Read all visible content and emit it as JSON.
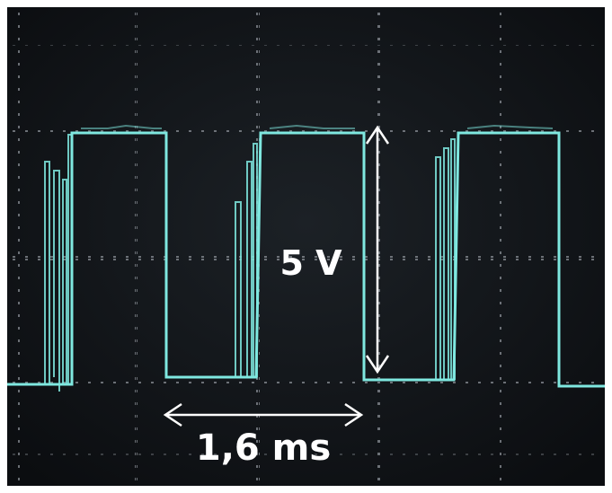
{
  "annotations": {
    "amplitude": "5 V",
    "period": "1,6 ms"
  }
}
